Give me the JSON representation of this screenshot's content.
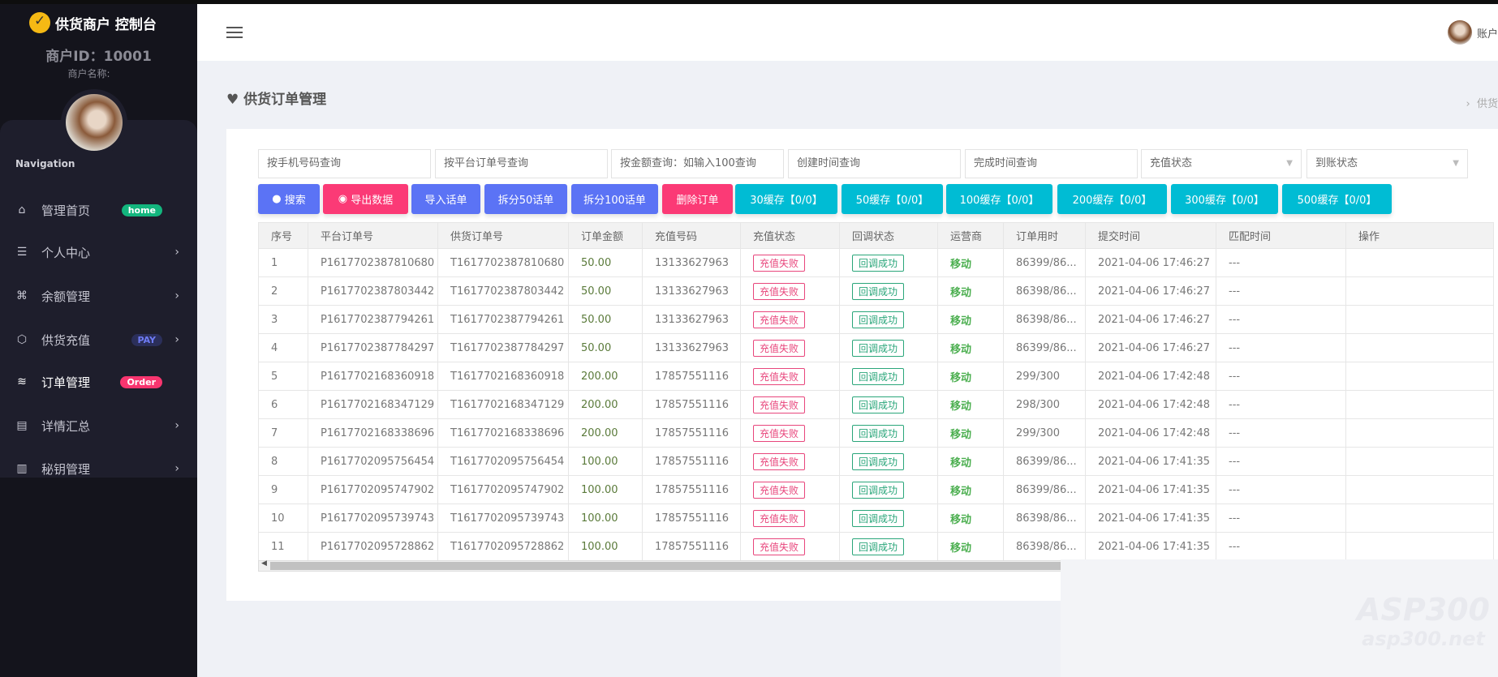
{
  "sidebar": {
    "brand": "供货商户 控制台",
    "merchant_id": "商户ID：10001",
    "merchant_name": "商户名称:",
    "nav_title": "Navigation",
    "items": [
      {
        "label": "管理首页",
        "icon": "home-icon",
        "badge": "home",
        "badge_color": "#13b67e",
        "chevron": false
      },
      {
        "label": "个人中心",
        "icon": "list-icon",
        "chevron": true
      },
      {
        "label": "余额管理",
        "icon": "command-icon",
        "chevron": true
      },
      {
        "label": "供货充值",
        "icon": "box-icon",
        "badge": "PAY",
        "badge_color": "#2b2f5a",
        "chevron": true
      },
      {
        "label": "订单管理",
        "icon": "layers-icon",
        "badge": "Order",
        "badge_color": "#f8356f",
        "chevron": false,
        "active": true
      },
      {
        "label": "详情汇总",
        "icon": "document-icon",
        "chevron": true
      },
      {
        "label": "秘钥管理",
        "icon": "map-icon",
        "chevron": true
      }
    ]
  },
  "header": {
    "user_label": "账户"
  },
  "page": {
    "title": "供货订单管理",
    "breadcrumb": "供货"
  },
  "filters": {
    "phone": "按手机号码查询",
    "platform_order": "按平台订单号查询",
    "amount": "按金额查询：如输入100查询",
    "created": "创建时间查询",
    "finished": "完成时间查询",
    "recharge_status": "充值状态",
    "arrival_status": "到账状态"
  },
  "buttons": [
    "搜索",
    "导出数据",
    "导入话单",
    "拆分50话单",
    "拆分100话单",
    "删除订单",
    "30缓存【0/0】",
    "50缓存【0/0】",
    "100缓存【0/0】",
    "200缓存【0/0】",
    "300缓存【0/0】",
    "500缓存【0/0】"
  ],
  "table": {
    "columns": [
      "序号",
      "平台订单号",
      "供货订单号",
      "订单金额",
      "充值号码",
      "充值状态",
      "回调状态",
      "运营商",
      "订单用时",
      "提交时间",
      "匹配时间",
      "操作"
    ],
    "rows": [
      [
        "1",
        "P1617702387810680",
        "T1617702387810680",
        "50.00",
        "13133627963",
        "充值失败",
        "回调成功",
        "移动",
        "86399/86...",
        "2021-04-06 17:46:27",
        "---",
        ""
      ],
      [
        "2",
        "P1617702387803442",
        "T1617702387803442",
        "50.00",
        "13133627963",
        "充值失败",
        "回调成功",
        "移动",
        "86398/86...",
        "2021-04-06 17:46:27",
        "---",
        ""
      ],
      [
        "3",
        "P1617702387794261",
        "T1617702387794261",
        "50.00",
        "13133627963",
        "充值失败",
        "回调成功",
        "移动",
        "86398/86...",
        "2021-04-06 17:46:27",
        "---",
        ""
      ],
      [
        "4",
        "P1617702387784297",
        "T1617702387784297",
        "50.00",
        "13133627963",
        "充值失败",
        "回调成功",
        "移动",
        "86399/86...",
        "2021-04-06 17:46:27",
        "---",
        ""
      ],
      [
        "5",
        "P1617702168360918",
        "T1617702168360918",
        "200.00",
        "17857551116",
        "充值失败",
        "回调成功",
        "移动",
        "299/300",
        "2021-04-06 17:42:48",
        "---",
        ""
      ],
      [
        "6",
        "P1617702168347129",
        "T1617702168347129",
        "200.00",
        "17857551116",
        "充值失败",
        "回调成功",
        "移动",
        "298/300",
        "2021-04-06 17:42:48",
        "---",
        ""
      ],
      [
        "7",
        "P1617702168338696",
        "T1617702168338696",
        "200.00",
        "17857551116",
        "充值失败",
        "回调成功",
        "移动",
        "299/300",
        "2021-04-06 17:42:48",
        "---",
        ""
      ],
      [
        "8",
        "P1617702095756454",
        "T1617702095756454",
        "100.00",
        "17857551116",
        "充值失败",
        "回调成功",
        "移动",
        "86399/86...",
        "2021-04-06 17:41:35",
        "---",
        ""
      ],
      [
        "9",
        "P1617702095747902",
        "T1617702095747902",
        "100.00",
        "17857551116",
        "充值失败",
        "回调成功",
        "移动",
        "86399/86...",
        "2021-04-06 17:41:35",
        "---",
        ""
      ],
      [
        "10",
        "P1617702095739743",
        "T1617702095739743",
        "100.00",
        "17857551116",
        "充值失败",
        "回调成功",
        "移动",
        "86398/86...",
        "2021-04-06 17:41:35",
        "---",
        ""
      ],
      [
        "11",
        "P1617702095728862",
        "T1617702095728862",
        "100.00",
        "17857551116",
        "充值失败",
        "回调成功",
        "移动",
        "86398/86...",
        "2021-04-06 17:41:35",
        "---",
        ""
      ]
    ]
  },
  "watermark": {
    "text": "ASP300",
    "sub": "asp300.net"
  }
}
